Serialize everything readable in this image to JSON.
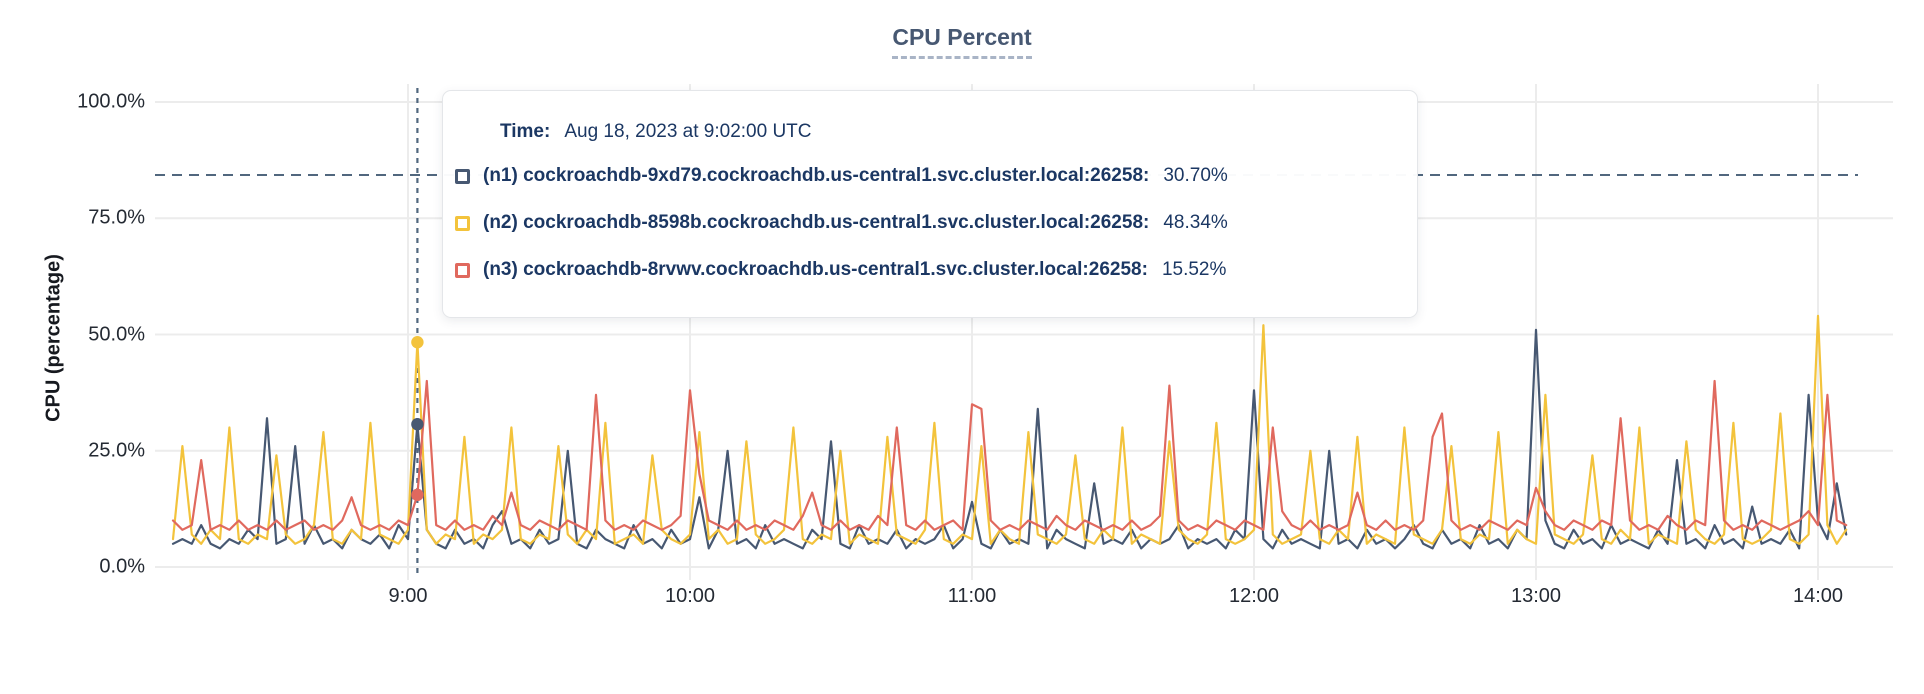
{
  "chart": {
    "title": "CPU Percent",
    "y_axis": {
      "title": "CPU (percentage)",
      "ticks": [
        {
          "label": "100.0%",
          "value": 100
        },
        {
          "label": "75.0%",
          "value": 75
        },
        {
          "label": "50.0%",
          "value": 50
        },
        {
          "label": "25.0%",
          "value": 25
        },
        {
          "label": "0.0%",
          "value": 0
        }
      ]
    },
    "x_axis": {
      "ticks": [
        "9:00",
        "10:00",
        "11:00",
        "12:00",
        "13:00",
        "14:00"
      ]
    },
    "tooltip": {
      "time_label": "Time:",
      "time_value": "Aug 18, 2023 at 9:02:00 UTC",
      "rows": [
        {
          "series": "n1",
          "label": "(n1) cockroachdb-9xd79.cockroachdb.us-central1.svc.cluster.local:26258:",
          "value": "30.70%",
          "color": "#475872"
        },
        {
          "series": "n2",
          "label": "(n2) cockroachdb-8598b.cockroachdb.us-central1.svc.cluster.local:26258:",
          "value": "48.34%",
          "color": "#f3c33c"
        },
        {
          "series": "n3",
          "label": "(n3) cockroachdb-8rvwv.cockroachdb.us-central1.svc.cluster.local:26258:",
          "value": "15.52%",
          "color": "#e0695e"
        }
      ]
    },
    "colors": {
      "gridline": "#ececec",
      "crosshair": "#51677e",
      "threshold": "#51677e",
      "title_text": "#475872",
      "tooltip_text": "#1b3763",
      "axis_text": "#242a33"
    }
  },
  "chart_data": {
    "type": "line",
    "title": "CPU Percent",
    "xlabel": "",
    "ylabel": "CPU (percentage)",
    "ylim": [
      0,
      100
    ],
    "grid": true,
    "x_tick_labels": [
      "9:00",
      "10:00",
      "11:00",
      "12:00",
      "13:00",
      "14:00"
    ],
    "start_time": "8:10",
    "end_time": "14:06",
    "step_minutes": 2,
    "threshold_percent": 84.3,
    "hover": {
      "time": "Aug 18, 2023 at 9:02:00 UTC",
      "index": 26,
      "values": {
        "n1": 30.7,
        "n2": 48.34,
        "n3": 15.52
      }
    },
    "series": [
      {
        "name": "(n1) cockroachdb-9xd79.cockroachdb.us-central1.svc.cluster.local:26258",
        "short": "n1",
        "color": "#475872",
        "values": [
          5,
          6,
          5,
          9,
          5,
          4,
          6,
          5,
          8,
          6,
          32,
          5,
          6,
          26,
          5,
          9,
          5,
          6,
          4,
          8,
          6,
          5,
          7,
          4,
          9,
          6,
          30.7,
          8,
          5,
          4,
          8,
          5,
          6,
          4,
          9,
          12,
          5,
          6,
          4,
          8,
          5,
          6,
          25,
          5,
          4,
          8,
          6,
          5,
          4,
          9,
          5,
          6,
          4,
          8,
          5,
          6,
          15,
          4,
          8,
          25,
          5,
          6,
          4,
          9,
          5,
          6,
          5,
          4,
          8,
          6,
          27,
          5,
          4,
          9,
          5,
          6,
          5,
          8,
          4,
          6,
          5,
          6,
          9,
          4,
          6,
          14,
          5,
          4,
          8,
          5,
          6,
          5,
          34,
          4,
          8,
          6,
          5,
          4,
          18,
          5,
          6,
          5,
          8,
          4,
          6,
          5,
          6,
          9,
          4,
          6,
          5,
          6,
          4,
          8,
          6,
          38,
          6,
          4,
          8,
          5,
          6,
          5,
          4,
          25,
          5,
          6,
          4,
          8,
          5,
          6,
          4,
          6,
          9,
          5,
          4,
          8,
          5,
          6,
          4,
          9,
          5,
          6,
          4,
          8,
          6,
          51,
          10,
          5,
          4,
          8,
          5,
          6,
          4,
          9,
          5,
          6,
          5,
          4,
          8,
          5,
          23,
          5,
          6,
          4,
          9,
          5,
          6,
          4,
          13,
          5,
          6,
          5,
          8,
          4,
          37,
          10,
          6,
          18,
          7
        ]
      },
      {
        "name": "(n2) cockroachdb-8598b.cockroachdb.us-central1.svc.cluster.local:26258",
        "short": "n2",
        "color": "#f3c33c",
        "values": [
          6,
          26,
          7,
          5,
          8,
          6,
          30,
          6,
          5,
          7,
          6,
          24,
          7,
          5,
          6,
          9,
          29,
          6,
          5,
          8,
          6,
          31,
          7,
          6,
          5,
          8,
          48.34,
          8,
          5,
          7,
          6,
          28,
          5,
          7,
          6,
          8,
          30,
          6,
          5,
          7,
          6,
          26,
          7,
          5,
          8,
          6,
          31,
          5,
          6,
          7,
          5,
          24,
          8,
          6,
          5,
          7,
          29,
          6,
          8,
          5,
          6,
          27,
          7,
          5,
          6,
          8,
          30,
          6,
          5,
          7,
          6,
          25,
          5,
          7,
          6,
          5,
          28,
          7,
          6,
          5,
          8,
          31,
          6,
          5,
          7,
          6,
          26,
          5,
          8,
          6,
          5,
          29,
          7,
          6,
          5,
          7,
          24,
          6,
          5,
          8,
          6,
          30,
          5,
          7,
          6,
          5,
          27,
          8,
          6,
          5,
          7,
          31,
          6,
          5,
          6,
          8,
          52,
          7,
          5,
          6,
          7,
          25,
          6,
          5,
          8,
          6,
          28,
          5,
          7,
          6,
          5,
          30,
          7,
          6,
          5,
          8,
          26,
          6,
          5,
          7,
          6,
          29,
          5,
          8,
          6,
          5,
          37,
          7,
          6,
          5,
          7,
          24,
          6,
          5,
          8,
          6,
          30,
          5,
          7,
          6,
          5,
          27,
          8,
          6,
          5,
          7,
          31,
          6,
          5,
          6,
          8,
          33,
          6,
          5,
          7,
          54,
          9,
          5,
          8
        ]
      },
      {
        "name": "(n3) cockroachdb-8rvwv.cockroachdb.us-central1.svc.cluster.local:26258",
        "short": "n3",
        "color": "#e0695e",
        "values": [
          10,
          8,
          9,
          23,
          8,
          9,
          8,
          10,
          8,
          9,
          8,
          10,
          8,
          9,
          10,
          8,
          9,
          8,
          10,
          15,
          9,
          8,
          9,
          8,
          10,
          9,
          15.52,
          40,
          9,
          8,
          10,
          8,
          9,
          8,
          11,
          9,
          16,
          9,
          8,
          10,
          9,
          8,
          10,
          9,
          8,
          37,
          10,
          8,
          9,
          8,
          10,
          9,
          8,
          9,
          11,
          38,
          20,
          10,
          9,
          8,
          10,
          8,
          9,
          8,
          10,
          9,
          8,
          11,
          16,
          9,
          8,
          10,
          8,
          9,
          8,
          11,
          9,
          30,
          9,
          8,
          10,
          8,
          9,
          10,
          8,
          35,
          34,
          10,
          8,
          9,
          8,
          10,
          9,
          8,
          11,
          9,
          8,
          10,
          9,
          8,
          9,
          8,
          10,
          8,
          9,
          11,
          39,
          10,
          8,
          9,
          8,
          10,
          9,
          8,
          10,
          9,
          8,
          30,
          12,
          9,
          8,
          10,
          8,
          9,
          8,
          9,
          16,
          9,
          8,
          10,
          8,
          9,
          8,
          10,
          28,
          33,
          10,
          8,
          9,
          8,
          10,
          9,
          8,
          10,
          9,
          17,
          12,
          9,
          8,
          10,
          9,
          8,
          10,
          9,
          32,
          10,
          8,
          9,
          8,
          11,
          9,
          8,
          10,
          9,
          40,
          10,
          8,
          9,
          8,
          10,
          9,
          8,
          9,
          10,
          12,
          9,
          37,
          10,
          9
        ]
      }
    ]
  }
}
